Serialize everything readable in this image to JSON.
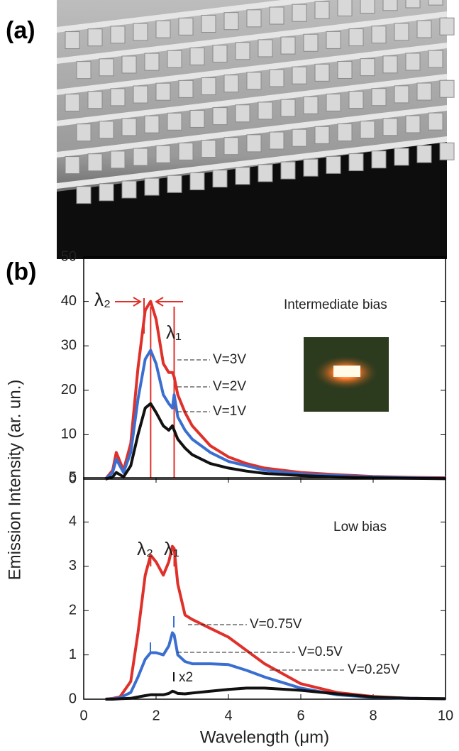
{
  "panel_labels": [
    "(a)",
    "(b)"
  ],
  "chart_data": [
    {
      "type": "line",
      "y_label": "Emission Intensity (ar. un.)",
      "annotations": [
        "Intermediate bias",
        "λ₂",
        "λ₁"
      ],
      "x": [
        0.6,
        0.8,
        0.9,
        1.0,
        1.1,
        1.3,
        1.5,
        1.7,
        1.85,
        2.0,
        2.2,
        2.35,
        2.45,
        2.5,
        2.6,
        2.8,
        3.0,
        3.5,
        4,
        4.5,
        5,
        6,
        7,
        8,
        9,
        10
      ],
      "series": [
        {
          "name": "V=3V",
          "color": "#e0302a",
          "values": [
            0,
            2,
            6,
            4,
            2,
            8,
            25,
            38,
            40,
            36,
            26,
            24,
            24,
            23,
            19,
            15,
            12,
            7.5,
            5,
            3.5,
            2.5,
            1.5,
            1,
            0.6,
            0.4,
            0.3
          ]
        },
        {
          "name": "V=2V",
          "color": "#3a6fd0",
          "values": [
            0,
            1.5,
            4.5,
            3,
            1.5,
            6,
            18,
            27,
            29,
            26,
            19,
            17,
            16,
            19,
            14,
            11,
            9,
            6,
            4,
            3,
            2,
            1.2,
            0.8,
            0.5,
            0.3,
            0.2
          ]
        },
        {
          "name": "V=1V",
          "color": "#111111",
          "values": [
            0,
            0.5,
            1.5,
            1,
            0.5,
            3,
            10,
            16,
            17,
            15,
            12,
            11,
            12,
            11,
            9,
            7,
            5.5,
            3.5,
            2.5,
            1.8,
            1.3,
            0.8,
            0.5,
            0.3,
            0.2,
            0.1
          ]
        }
      ],
      "vlines": [
        1.85,
        2.5
      ],
      "xlim": [
        0,
        10
      ],
      "ylim": [
        0,
        50
      ],
      "yticks": [
        0,
        10,
        20,
        30,
        40,
        50
      ]
    },
    {
      "type": "line",
      "x_label": "Wavelength (μm)",
      "annotations": [
        "Low bias",
        "λ₂",
        "λ₁",
        "x2"
      ],
      "x": [
        0.6,
        0.8,
        1.0,
        1.3,
        1.5,
        1.7,
        1.85,
        2.0,
        2.2,
        2.35,
        2.45,
        2.5,
        2.6,
        2.8,
        3.0,
        3.5,
        4,
        4.5,
        5,
        6,
        7,
        8,
        9,
        10
      ],
      "series": [
        {
          "name": "V=0.75V",
          "color": "#e0302a",
          "values": [
            0,
            0.02,
            0.05,
            0.4,
            1.5,
            2.8,
            3.25,
            3.1,
            2.8,
            3.1,
            3.45,
            3.4,
            2.6,
            1.9,
            1.8,
            1.6,
            1.4,
            1.1,
            0.8,
            0.35,
            0.15,
            0.06,
            0.02,
            0.01
          ]
        },
        {
          "name": "V=0.5V",
          "color": "#3a6fd0",
          "values": [
            0,
            0.01,
            0.03,
            0.15,
            0.5,
            0.9,
            1.05,
            1.05,
            1.0,
            1.2,
            1.5,
            1.45,
            1.0,
            0.85,
            0.8,
            0.8,
            0.78,
            0.65,
            0.5,
            0.25,
            0.1,
            0.04,
            0.02,
            0.01
          ]
        },
        {
          "name": "V=0.25V",
          "color": "#111111",
          "values": [
            0,
            0,
            0.01,
            0.02,
            0.05,
            0.08,
            0.1,
            0.1,
            0.1,
            0.13,
            0.18,
            0.17,
            0.13,
            0.12,
            0.14,
            0.18,
            0.22,
            0.25,
            0.25,
            0.2,
            0.12,
            0.05,
            0.02,
            0.01
          ]
        }
      ],
      "vlines": [
        1.85,
        2.5
      ],
      "xlim": [
        0,
        10
      ],
      "xticks": [
        0,
        2,
        4,
        6,
        8,
        10
      ],
      "ylim": [
        0,
        5
      ],
      "yticks": [
        0,
        1,
        2,
        3,
        4,
        5
      ]
    }
  ]
}
